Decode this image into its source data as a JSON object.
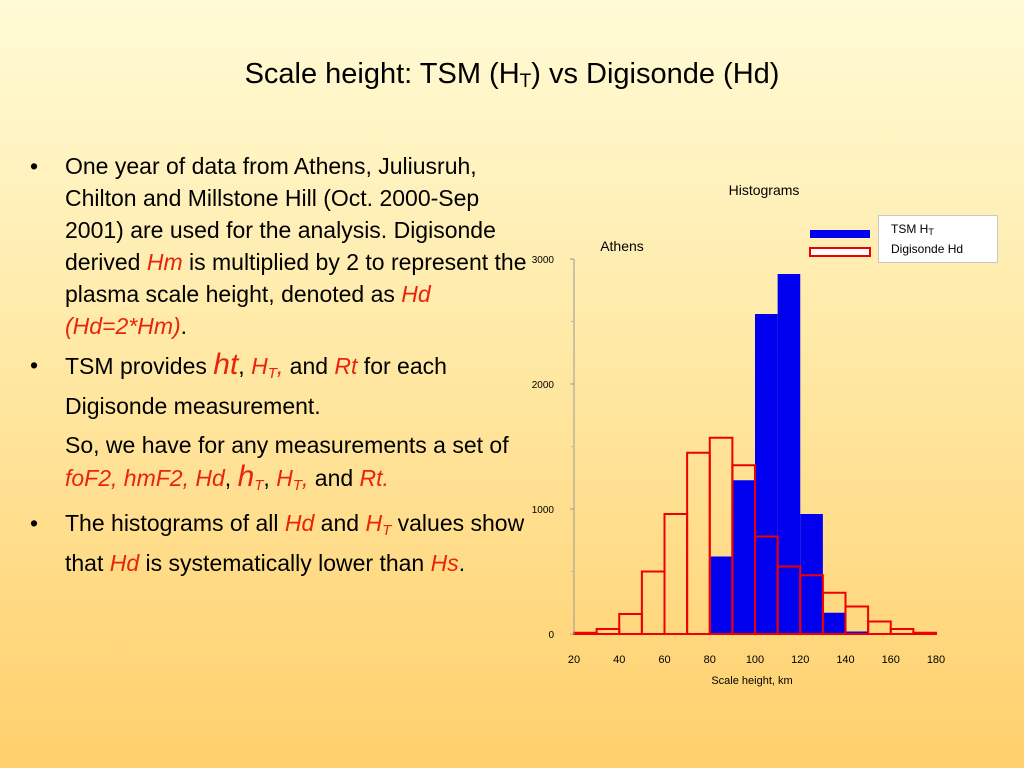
{
  "slide": {
    "title_main": "Scale height: TSM (H",
    "title_sub": "T",
    "title_end": ") vs Digisonde (Hd)"
  },
  "bullets": {
    "b1": {
      "marker": "•",
      "text1": "One year of data from Athens, Juliusruh, Chilton and Millstone Hill (Oct. 2000-Sep 2001) are used for the analysis. Digisonde derived ",
      "hm": "Hm",
      "text2": " is multiplied by 2 to represent the plasma scale height, denoted as ",
      "hd": "Hd (Hd=2*Hm)",
      "text3": "."
    },
    "b2": {
      "marker": "•",
      "text1": "TSM provides ",
      "ht": "ht",
      "comma1": ", ",
      "HT": "H",
      "HT_sub": "T",
      "comma2": ",",
      "and1": " and ",
      "rt": "Rt",
      "text2": " for each Digisonde measurement."
    },
    "para": {
      "text1": "So, we have for any measurements a set of ",
      "params": "foF2, hmF2, Hd",
      "comma1": ", ",
      "h": "h",
      "h_sub": "T",
      "comma2": ", ",
      "H": "H",
      "H_sub": "T",
      "comma3": ",",
      "and": " and ",
      "rt": "Rt."
    },
    "b3": {
      "marker": "•",
      "text1": "The histograms of all ",
      "hd": "Hd",
      "and": " and ",
      "H": "H",
      "H_sub": "T",
      "text2": " values show that ",
      "hd2": "Hd",
      "text3": " is systematically lower than ",
      "hs": "Hs",
      "text4": "."
    }
  },
  "chart_data": {
    "type": "bar",
    "title": "Histograms",
    "subtitle": "Athens",
    "xlabel": "Scale height, km",
    "ylabel": "",
    "xlim": [
      20,
      180
    ],
    "ylim": [
      0,
      3000
    ],
    "x_ticks": [
      20,
      40,
      60,
      80,
      100,
      120,
      140,
      160,
      180
    ],
    "y_ticks": [
      0,
      1000,
      2000,
      3000
    ],
    "y_minor_ticks": [
      500,
      1500,
      2500
    ],
    "bin_width": 10,
    "bin_starts": [
      20,
      30,
      40,
      50,
      60,
      70,
      80,
      90,
      100,
      110,
      120,
      130,
      140,
      150,
      160,
      170
    ],
    "series": [
      {
        "name": "TSM H",
        "name_sub": "T",
        "style": "filled",
        "color": "#0000ee",
        "values": [
          0,
          0,
          0,
          0,
          0,
          0,
          620,
          1230,
          2560,
          2880,
          960,
          170,
          20,
          0,
          0,
          0
        ]
      },
      {
        "name": "Digisonde Hd",
        "style": "outline",
        "color": "#ee0000",
        "values": [
          10,
          40,
          160,
          500,
          960,
          1450,
          1570,
          1350,
          780,
          540,
          470,
          330,
          220,
          100,
          40,
          10
        ]
      }
    ],
    "legend_position": "top-right",
    "grid": false
  },
  "colors": {
    "highlight": "#e8240c",
    "tsm": "#0000ee",
    "digisonde": "#ee0000"
  }
}
